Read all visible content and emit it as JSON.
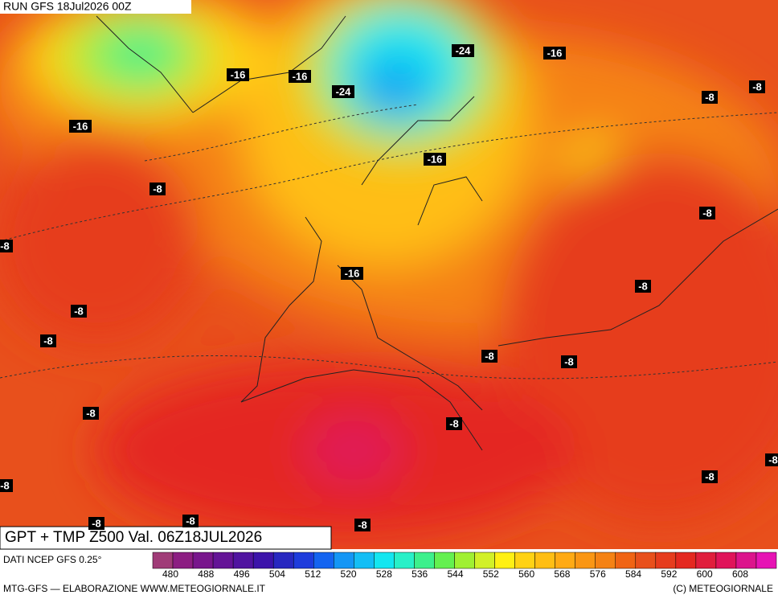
{
  "header": {
    "run": "RUN GFS 18Jul2026 00Z"
  },
  "map": {
    "contour_labels": [
      "-16",
      "-16",
      "-24",
      "-16",
      "-24",
      "-8",
      "-8",
      "-16",
      "-16",
      "-8",
      "-8",
      "-8",
      "-16",
      "-8",
      "-8",
      "-8",
      "-8",
      "-8",
      "-8",
      "-8",
      "-8",
      "-8",
      "-8",
      "-8",
      "-8",
      "-8"
    ]
  },
  "footer": {
    "title": "GPT + TMP Z500 Val. 06Z18JUL2026",
    "source": "DATI NCEP GFS 0.25°",
    "credit_left": "MTG-GFS — ELABORAZIONE WWW.METEOGIORNALE.IT",
    "credit_right": "(C) METEOGIORNALE"
  },
  "scale": {
    "labels": [
      480,
      488,
      496,
      504,
      512,
      520,
      528,
      536,
      544,
      552,
      560,
      568,
      576,
      584,
      592,
      600,
      608
    ],
    "colors": [
      "#a03c78",
      "#8c1e82",
      "#78168c",
      "#641496",
      "#5014a0",
      "#3c14aa",
      "#2828c0",
      "#1e3cdc",
      "#1464f0",
      "#1496f5",
      "#14bef5",
      "#14e6f0",
      "#28f0c8",
      "#3cf08c",
      "#64f050",
      "#a0f032",
      "#d2f028",
      "#fff014",
      "#ffd214",
      "#ffbe14",
      "#ffaa14",
      "#fa9614",
      "#f58214",
      "#f06414",
      "#e8501c",
      "#e63c1e",
      "#e42820",
      "#e01e3c",
      "#e0145a",
      "#dc148c",
      "#e614b4"
    ]
  }
}
